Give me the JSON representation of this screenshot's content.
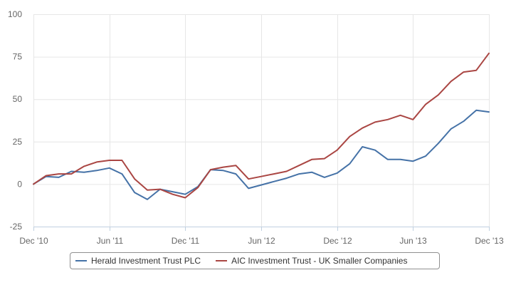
{
  "chart_data": {
    "type": "line",
    "title": "",
    "xlabel": "",
    "ylabel": "",
    "ylim": [
      -25,
      100
    ],
    "yticks": [
      -25,
      0,
      25,
      50,
      75,
      100
    ],
    "xlim": [
      "2010-12",
      "2013-12"
    ],
    "xticks": [
      {
        "value": "2010-12",
        "label": "Dec '10"
      },
      {
        "value": "2011-06",
        "label": "Jun '11"
      },
      {
        "value": "2011-12",
        "label": "Dec '11"
      },
      {
        "value": "2012-06",
        "label": "Jun '12"
      },
      {
        "value": "2012-12",
        "label": "Dec '12"
      },
      {
        "value": "2013-06",
        "label": "Jun '13"
      },
      {
        "value": "2013-12",
        "label": "Dec '13"
      }
    ],
    "grid": true,
    "legend": "bottom",
    "x": [
      "2010-12",
      "2011-01",
      "2011-02",
      "2011-03",
      "2011-04",
      "2011-05",
      "2011-06",
      "2011-07",
      "2011-08",
      "2011-09",
      "2011-10",
      "2011-11",
      "2011-12",
      "2012-01",
      "2012-02",
      "2012-03",
      "2012-04",
      "2012-05",
      "2012-06",
      "2012-07",
      "2012-08",
      "2012-09",
      "2012-10",
      "2012-11",
      "2012-12",
      "2013-01",
      "2013-02",
      "2013-03",
      "2013-04",
      "2013-05",
      "2013-06",
      "2013-07",
      "2013-08",
      "2013-09",
      "2013-10",
      "2013-11",
      "2013-12"
    ],
    "series": [
      {
        "name": "Herald Investment Trust PLC",
        "color": "#4572a7",
        "values": [
          0,
          4.5,
          4,
          7.5,
          7,
          8,
          9.5,
          6,
          -5,
          -9,
          -3,
          -4.5,
          -6,
          -1.5,
          8.5,
          8,
          6,
          -2.5,
          -0.5,
          1.5,
          3.5,
          6,
          7,
          4,
          6.5,
          12,
          22,
          20,
          14.5,
          14.5,
          13.5,
          16.5,
          24,
          32.5,
          37,
          43.5,
          42.5
        ]
      },
      {
        "name": "AIC Investment Trust - UK Smaller Companies",
        "color": "#aa4643",
        "values": [
          0,
          5,
          6,
          6,
          10.5,
          13,
          14,
          14,
          3,
          -3.5,
          -3,
          -6,
          -8,
          -2,
          8.5,
          10,
          11,
          3,
          4.5,
          6,
          7.5,
          11,
          14.5,
          15,
          20,
          28,
          33,
          36.5,
          38,
          40.5,
          38,
          47,
          52.5,
          60.5,
          66,
          67,
          77
        ]
      }
    ]
  }
}
